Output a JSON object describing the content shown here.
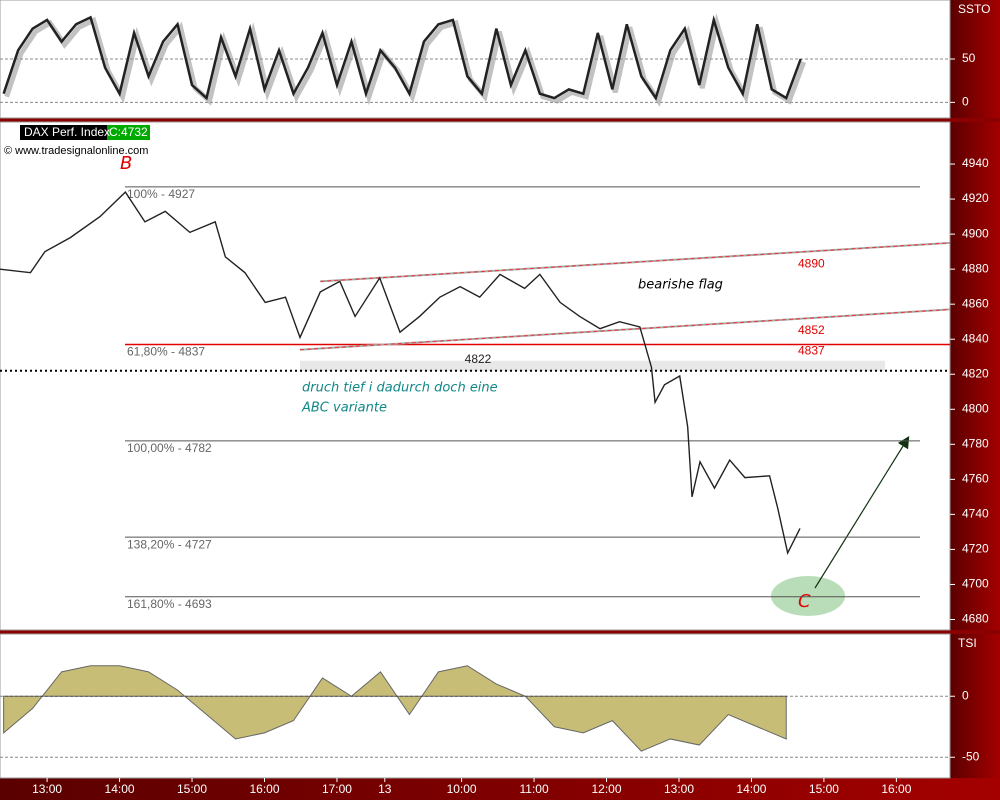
{
  "chart_data": [
    {
      "type": "line",
      "title": "SSTO",
      "color": "#222222",
      "xlim": [
        0.35,
        13.46
      ],
      "ylim": [
        -18,
        118
      ],
      "yticks": [
        0,
        50
      ],
      "x": [
        0.4,
        0.6,
        0.8,
        1.0,
        1.2,
        1.4,
        1.6,
        1.8,
        2.0,
        2.2,
        2.4,
        2.6,
        2.8,
        3.0,
        3.2,
        3.4,
        3.6,
        3.8,
        4.0,
        4.2,
        4.4,
        4.6,
        4.8,
        5.0,
        5.2,
        5.4,
        5.6,
        5.8,
        6.0,
        6.2,
        6.4,
        6.6,
        6.8,
        7.0,
        7.2,
        7.4,
        7.6,
        7.8,
        8.0,
        8.2,
        8.4,
        8.6,
        8.8,
        9.0,
        9.2,
        9.4,
        9.6,
        9.8,
        10.0,
        10.2,
        10.4,
        10.6,
        10.8,
        11.0,
        11.2,
        11.4
      ],
      "values": [
        10,
        60,
        85,
        95,
        70,
        90,
        98,
        40,
        10,
        80,
        30,
        70,
        90,
        20,
        5,
        75,
        30,
        85,
        15,
        60,
        10,
        40,
        80,
        20,
        70,
        10,
        60,
        40,
        10,
        70,
        90,
        95,
        30,
        10,
        85,
        20,
        60,
        10,
        5,
        15,
        10,
        80,
        15,
        90,
        30,
        5,
        60,
        85,
        20,
        95,
        40,
        10,
        90,
        15,
        5,
        50
      ]
    },
    {
      "type": "line",
      "title": "DAX Perf. Index",
      "last": "C:4732",
      "source": "© www.tradesignalonline.com",
      "color": "#222222",
      "xlim": [
        0.35,
        13.46
      ],
      "ylim": [
        4674,
        4964
      ],
      "yticks": [
        4680,
        4700,
        4720,
        4740,
        4760,
        4780,
        4800,
        4820,
        4840,
        4860,
        4880,
        4900,
        4920,
        4940
      ],
      "xticks": [
        {
          "value": 1,
          "label": "13:00"
        },
        {
          "value": 2,
          "label": "14:00"
        },
        {
          "value": 3,
          "label": "15:00"
        },
        {
          "value": 4,
          "label": "16:00"
        },
        {
          "value": 5,
          "label": "17:00"
        },
        {
          "value": 5.66,
          "label": "13"
        },
        {
          "value": 6.72,
          "label": "10:00"
        },
        {
          "value": 7.72,
          "label": "11:00"
        },
        {
          "value": 8.72,
          "label": "12:00"
        },
        {
          "value": 9.72,
          "label": "13:00"
        },
        {
          "value": 10.72,
          "label": "14:00"
        },
        {
          "value": 11.72,
          "label": "15:00"
        },
        {
          "value": 12.72,
          "label": "16:00"
        }
      ],
      "x": [
        0.35,
        0.77,
        0.97,
        1.32,
        1.73,
        2.08,
        2.35,
        2.63,
        2.97,
        3.32,
        3.46,
        3.73,
        4.01,
        4.29,
        4.49,
        4.77,
        5.04,
        5.25,
        5.59,
        5.87,
        6.14,
        6.42,
        6.7,
        6.97,
        7.25,
        7.59,
        7.8,
        8.08,
        8.35,
        8.63,
        8.9,
        9.18,
        9.34,
        9.39,
        9.52,
        9.73,
        9.84,
        9.9,
        10.01,
        10.21,
        10.42,
        10.63,
        10.97,
        11.08,
        11.22,
        11.39
      ],
      "values": [
        4880,
        4878,
        4890,
        4898,
        4910,
        4924,
        4907,
        4913,
        4901,
        4907,
        4887,
        4878,
        4861,
        4864,
        4841,
        4867,
        4873,
        4853,
        4875,
        4844,
        4853,
        4864,
        4870,
        4864,
        4877,
        4869,
        4877,
        4861,
        4853,
        4846,
        4850,
        4847,
        4824,
        4804,
        4814,
        4819,
        4790,
        4750,
        4770,
        4755,
        4771,
        4761,
        4762,
        4744,
        4718,
        4732
      ],
      "levels": [
        {
          "label": "100% - 4927",
          "value": 4927,
          "color": "#555555"
        },
        {
          "label": "61,80% - 4837",
          "value": 4837,
          "color": "#e00000",
          "right_label": "4837"
        },
        {
          "label": "4822",
          "value": 4822,
          "color": "#000000"
        },
        {
          "label": "100,00% - 4782",
          "value": 4782,
          "color": "#555555"
        },
        {
          "label": "138,20% - 4727",
          "value": 4727,
          "color": "#555555"
        },
        {
          "label": "161,80% - 4693",
          "value": 4693,
          "color": "#555555"
        }
      ],
      "trendlines": [
        {
          "label": "4890",
          "x": [
            4.77,
            13.46
          ],
          "y": [
            4873,
            4895
          ]
        },
        {
          "label": "4852",
          "x": [
            4.49,
            13.46
          ],
          "y": [
            4834,
            4857
          ]
        }
      ],
      "notes": {
        "flag": "bearishe flag",
        "line1": "druch tief i dadurch doch eine",
        "line2": "ABC variante",
        "b": "B",
        "c": "C"
      }
    },
    {
      "type": "area",
      "title": "TSI",
      "color": "#b5a84a",
      "xlim": [
        0.35,
        13.46
      ],
      "ylim": [
        -67,
        51
      ],
      "yticks": [
        0,
        -50
      ],
      "x": [
        0.4,
        0.8,
        1.2,
        1.6,
        2.0,
        2.4,
        2.8,
        3.2,
        3.6,
        4.0,
        4.4,
        4.8,
        5.2,
        5.6,
        6.0,
        6.4,
        6.8,
        7.2,
        7.6,
        8.0,
        8.4,
        8.8,
        9.2,
        9.6,
        10.0,
        10.4,
        10.8,
        11.2
      ],
      "values": [
        -30,
        -10,
        20,
        25,
        25,
        20,
        5,
        -15,
        -35,
        -30,
        -20,
        15,
        0,
        20,
        -15,
        20,
        25,
        10,
        0,
        -25,
        -30,
        -20,
        -45,
        -35,
        -40,
        -15,
        -25,
        -35
      ]
    }
  ]
}
